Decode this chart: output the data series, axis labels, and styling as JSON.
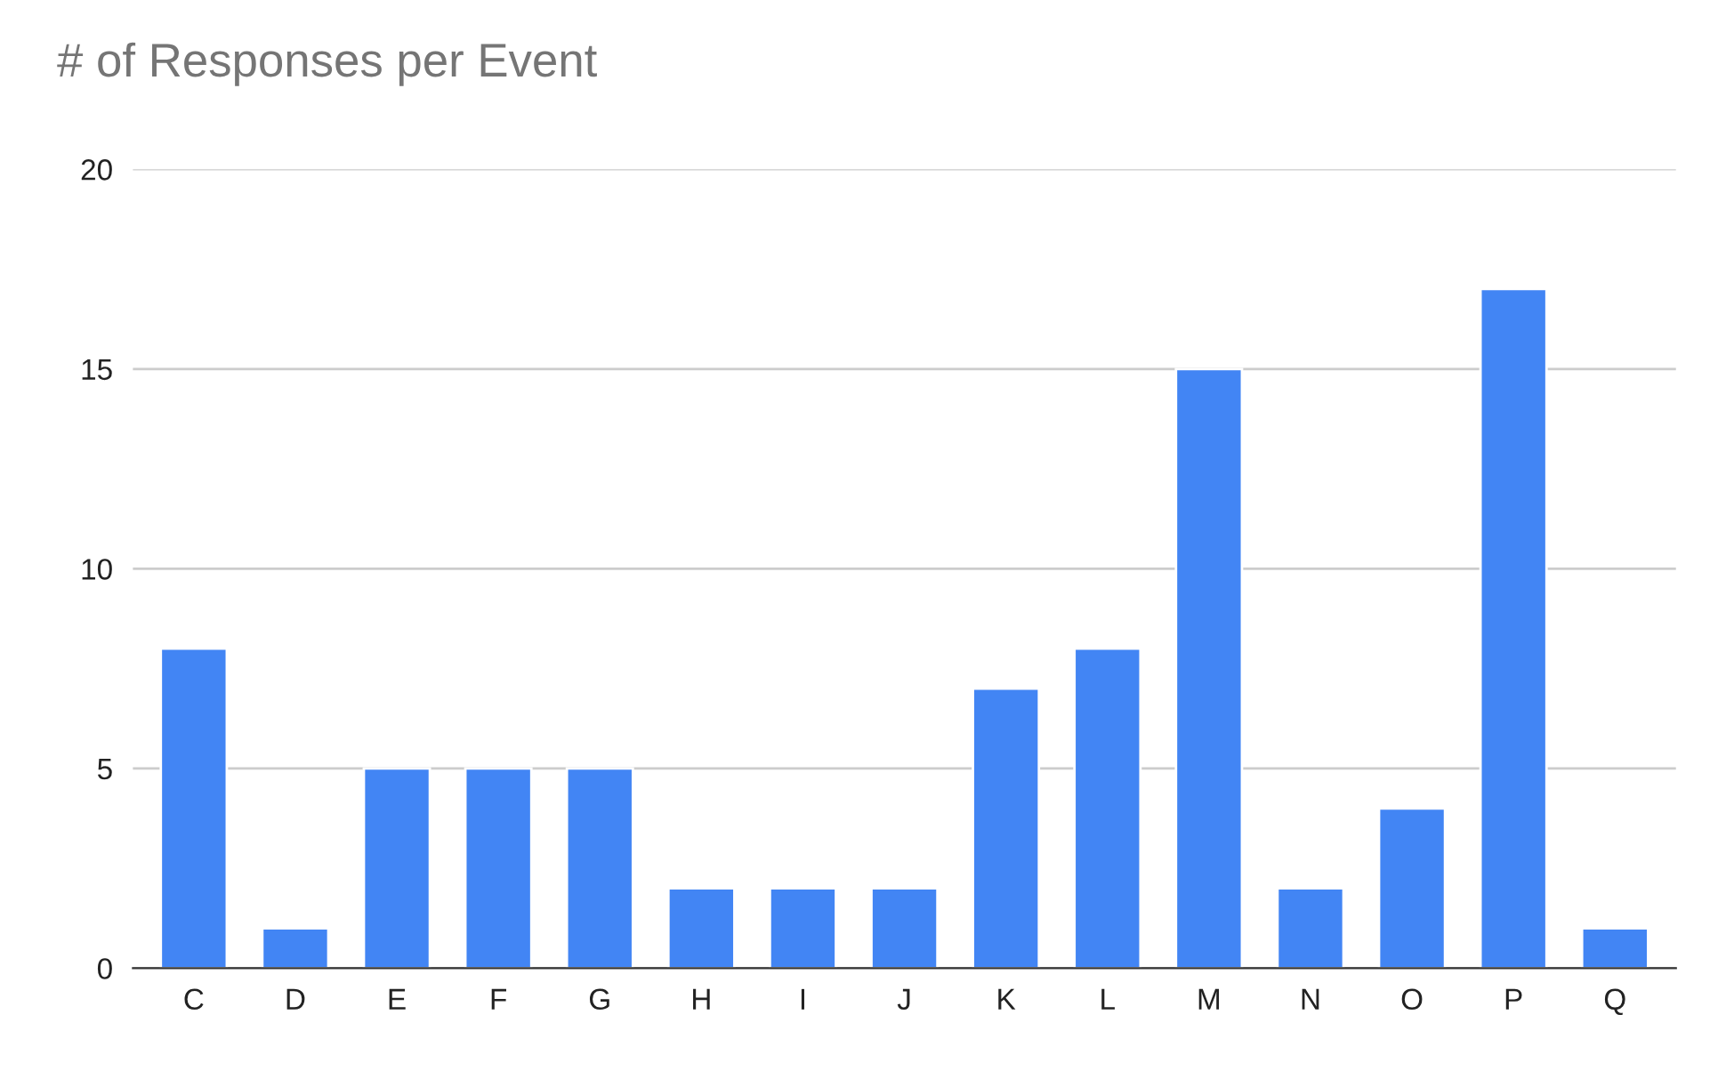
{
  "chart_data": {
    "type": "bar",
    "title": "# of Responses per Event",
    "categories": [
      "C",
      "D",
      "E",
      "F",
      "G",
      "H",
      "I",
      "J",
      "K",
      "L",
      "M",
      "N",
      "O",
      "P",
      "Q"
    ],
    "values": [
      8,
      1,
      5,
      5,
      5,
      2,
      2,
      2,
      7,
      8,
      15,
      2,
      4,
      17,
      1
    ],
    "color": "#4285f4",
    "ylim": [
      0,
      20
    ],
    "yticks": [
      0,
      5,
      10,
      15,
      20
    ],
    "grid": "y"
  }
}
